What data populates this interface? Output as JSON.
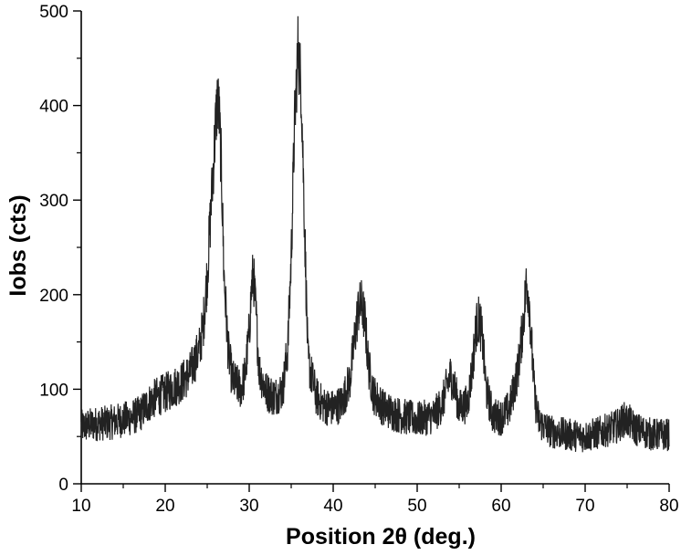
{
  "chart_data": {
    "type": "line",
    "title": "",
    "xlabel": "Position 2θ (deg.)",
    "ylabel": "Iobs (cts)",
    "xlim": [
      10,
      80
    ],
    "ylim": [
      0,
      500
    ],
    "xticks": [
      10,
      20,
      30,
      40,
      50,
      60,
      70,
      80
    ],
    "yticks": [
      0,
      100,
      200,
      300,
      400,
      500
    ],
    "grid": false,
    "legend": "none",
    "line_color": "#222222",
    "series": [
      {
        "x": [
          10,
          11,
          12,
          13,
          14,
          15,
          16,
          17,
          18,
          19,
          20,
          21,
          22,
          23,
          23.5,
          24,
          24.5,
          25,
          25.5,
          26,
          26.2,
          26.4,
          26.7,
          27,
          27.5,
          28,
          29,
          29.5,
          30,
          30.3,
          30.5,
          30.8,
          31.2,
          32,
          33,
          34,
          34.6,
          35,
          35.4,
          35.8,
          36.2,
          36.6,
          37,
          38,
          39,
          40,
          41,
          42,
          42.5,
          43,
          43.4,
          43.8,
          44.2,
          44.8,
          46,
          48,
          50,
          52,
          53,
          53.6,
          54,
          54.5,
          55,
          56,
          56.6,
          57,
          57.4,
          57.8,
          58.2,
          59,
          60,
          61,
          62,
          62.5,
          63,
          63.3,
          63.6,
          64,
          64.5,
          66,
          68,
          70,
          72,
          73,
          74,
          74.6,
          75.2,
          76,
          78,
          80
        ],
        "y": [
          60,
          62,
          64,
          64,
          66,
          68,
          70,
          74,
          85,
          92,
          96,
          102,
          108,
          118,
          130,
          140,
          165,
          220,
          300,
          380,
          405,
          395,
          330,
          220,
          140,
          110,
          100,
          115,
          160,
          210,
          222,
          180,
          120,
          98,
          92,
          100,
          145,
          240,
          380,
          460,
          420,
          270,
          130,
          92,
          82,
          80,
          85,
          110,
          150,
          185,
          190,
          170,
          125,
          95,
          80,
          72,
          68,
          72,
          85,
          105,
          115,
          100,
          80,
          85,
          125,
          165,
          175,
          150,
          100,
          72,
          70,
          80,
          120,
          160,
          210,
          200,
          150,
          90,
          65,
          55,
          52,
          50,
          55,
          58,
          62,
          68,
          66,
          58,
          52,
          52
        ]
      }
    ]
  }
}
